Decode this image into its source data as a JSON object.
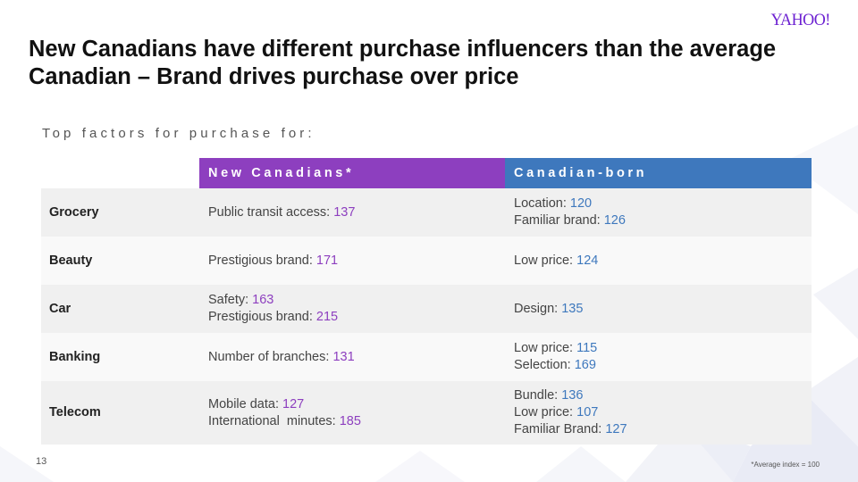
{
  "logo": "YAHOO!",
  "title_lines": [
    "New Canadians have different purchase influencers than the average",
    "Canadian – Brand drives purchase over price"
  ],
  "subtitle": "Top factors for purchase for:",
  "table": {
    "headers": [
      "",
      "New Canadians*",
      "Canadian-born"
    ],
    "rows": [
      {
        "category": "Grocery",
        "new_canadians": [
          {
            "label": "Public transit access:",
            "value": "137"
          }
        ],
        "canadian_born": [
          {
            "label": "Location:",
            "value": "120"
          },
          {
            "label": "Familiar brand:",
            "value": "126"
          }
        ]
      },
      {
        "category": "Beauty",
        "new_canadians": [
          {
            "label": "Prestigious brand:",
            "value": "171"
          }
        ],
        "canadian_born": [
          {
            "label": "Low price:",
            "value": "124"
          }
        ]
      },
      {
        "category": "Car",
        "new_canadians": [
          {
            "label": "Safety:",
            "value": "163"
          },
          {
            "label": "Prestigious brand:",
            "value": "215"
          }
        ],
        "canadian_born": [
          {
            "label": "Design:",
            "value": "135"
          }
        ]
      },
      {
        "category": "Banking",
        "new_canadians": [
          {
            "label": "Number of branches:",
            "value": "131"
          }
        ],
        "canadian_born": [
          {
            "label": "Low price:",
            "value": "115"
          },
          {
            "label": "Selection:",
            "value": "169"
          }
        ]
      },
      {
        "category": "Telecom",
        "new_canadians": [
          {
            "label": "Mobile data:",
            "value": "127"
          },
          {
            "label": "International  minutes:",
            "value": "185"
          }
        ],
        "canadian_born": [
          {
            "label": "Bundle:",
            "value": "136"
          },
          {
            "label": "Low price:",
            "value": "107"
          },
          {
            "label": "Familiar Brand:",
            "value": "127"
          }
        ]
      }
    ]
  },
  "page_number": "13",
  "footnote": "*Average index = 100",
  "colors": {
    "new_canadians": "#8d3fbf",
    "canadian_born": "#3e78bd",
    "logo": "#6b1fd1"
  }
}
